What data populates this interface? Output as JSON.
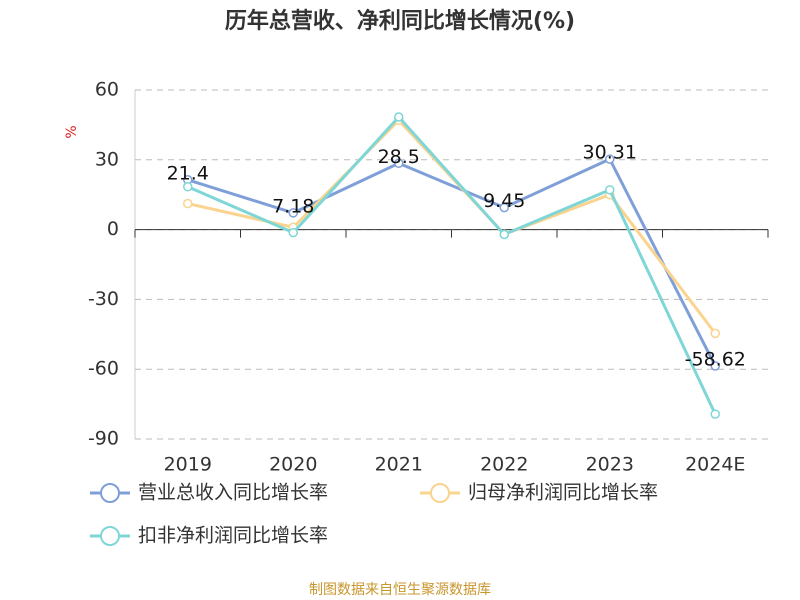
{
  "chart_data": {
    "type": "line",
    "title": "历年总营收、净利同比增长情况(%)",
    "y_label": "%",
    "categories": [
      "2019",
      "2020",
      "2021",
      "2022",
      "2023",
      "2024E"
    ],
    "series": [
      {
        "name": "营业总收入同比增长率",
        "color": "#7f9fd8",
        "values": [
          21.4,
          7.18,
          28.5,
          9.45,
          30.31,
          -58.62
        ],
        "show_labels": true
      },
      {
        "name": "归母净利润同比增长率",
        "color": "#fad38e",
        "values": [
          11.2,
          1,
          47,
          -2,
          15,
          -44.6
        ]
      },
      {
        "name": "扣非净利润同比增长率",
        "color": "#7fd6d6",
        "values": [
          18.4,
          -1.3,
          48.4,
          -2.1,
          17.1,
          -79.3
        ]
      }
    ],
    "ylim": [
      -90,
      60
    ],
    "yticks": [
      -90,
      -60,
      -30,
      0,
      30,
      60
    ],
    "grid": true,
    "source": "制图数据来自恒生聚源数据库"
  }
}
